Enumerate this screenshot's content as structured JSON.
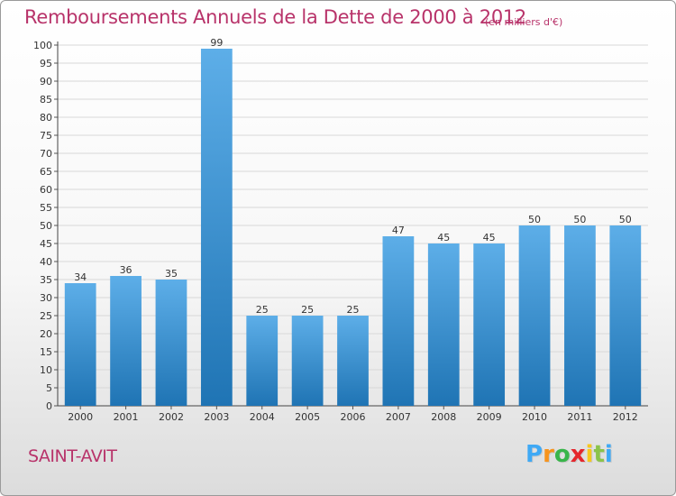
{
  "header": {
    "title": "Remboursements Annuels de la Dette de 2000 à 2012",
    "unit": "(en milliers d'€)"
  },
  "footer": {
    "commune": "SAINT-AVIT",
    "logo": "Proxiti"
  },
  "colors": {
    "bar_top": "#5daee8",
    "bar_bottom": "#1f74b4",
    "title": "#b8336a"
  },
  "chart_data": {
    "type": "bar",
    "categories": [
      "2000",
      "2001",
      "2002",
      "2003",
      "2004",
      "2005",
      "2006",
      "2007",
      "2008",
      "2009",
      "2010",
      "2011",
      "2012"
    ],
    "values": [
      34,
      36,
      35,
      99,
      25,
      25,
      25,
      47,
      45,
      45,
      50,
      50,
      50
    ],
    "data_labels": [
      "34",
      "36",
      "35",
      "99",
      "25",
      "25",
      "25",
      "47",
      "45",
      "45",
      "50",
      "50",
      "50"
    ],
    "yticks": [
      0,
      5,
      10,
      15,
      20,
      25,
      30,
      35,
      40,
      45,
      50,
      55,
      60,
      65,
      70,
      75,
      80,
      85,
      90,
      95,
      100
    ],
    "ylim": [
      0,
      100
    ],
    "grid": true
  }
}
